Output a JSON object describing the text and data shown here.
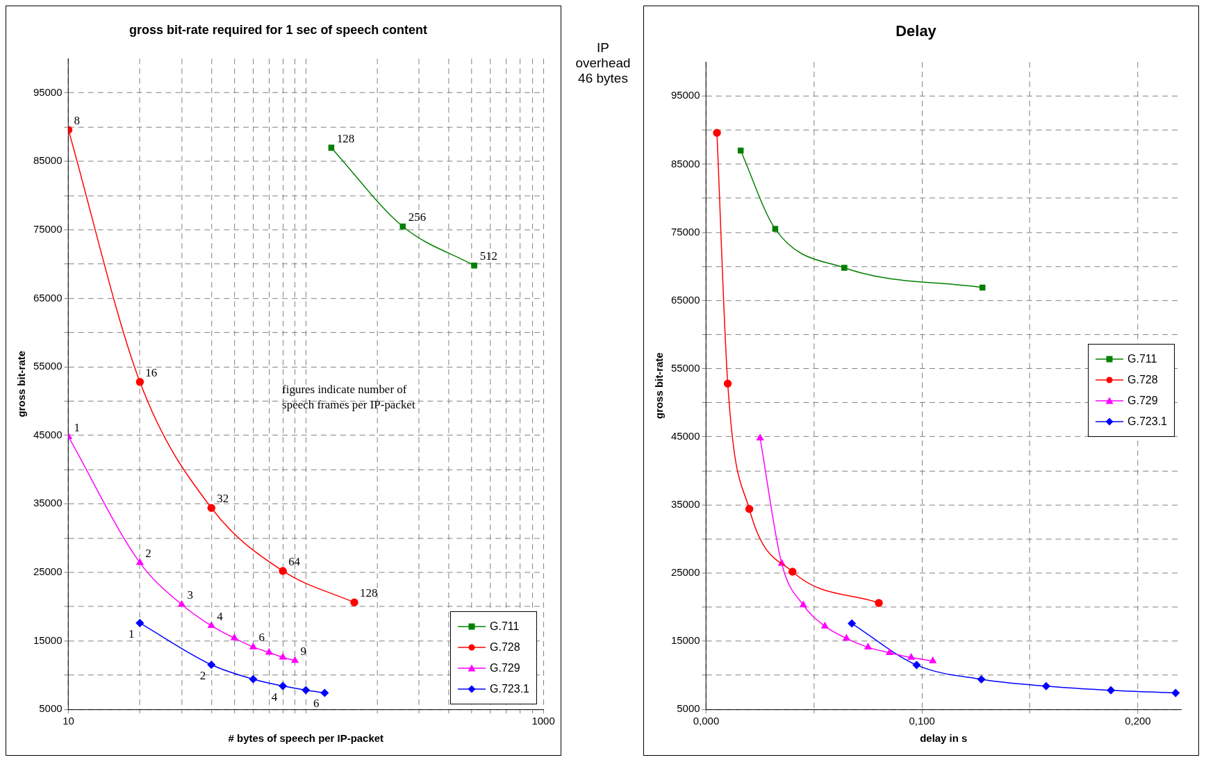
{
  "chart_data": [
    {
      "type": "line",
      "title": "gross bit-rate required for 1 sec of speech content",
      "xlabel": "# bytes of speech per IP-packet",
      "ylabel": "gross bit-rate",
      "log": "x",
      "xlim": [
        10,
        1000
      ],
      "xticks": [
        10,
        {
          "value": 20,
          "label": null
        },
        {
          "value": 30,
          "label": null
        },
        {
          "value": 40,
          "label": null
        },
        {
          "value": 50,
          "label": null
        },
        {
          "value": 60,
          "label": null
        },
        {
          "value": 70,
          "label": null
        },
        {
          "value": 80,
          "label": null
        },
        {
          "value": 90,
          "label": null
        },
        {
          "value": 100,
          "label": null
        },
        {
          "value": 200,
          "label": null
        },
        {
          "value": 300,
          "label": null
        },
        {
          "value": 400,
          "label": null
        },
        {
          "value": 500,
          "label": null
        },
        {
          "value": 600,
          "label": null
        },
        {
          "value": 700,
          "label": null
        },
        {
          "value": 800,
          "label": null
        },
        {
          "value": 900,
          "label": null
        },
        1000
      ],
      "ylim": [
        5000,
        100000
      ],
      "yticks": [
        5000,
        {
          "value": 10000,
          "label": null
        },
        15000,
        {
          "value": 20000,
          "label": null
        },
        25000,
        {
          "value": 30000,
          "label": null
        },
        35000,
        {
          "value": 40000,
          "label": null
        },
        45000,
        {
          "value": 50000,
          "label": null
        },
        55000,
        {
          "value": 60000,
          "label": null
        },
        65000,
        {
          "value": 70000,
          "label": null
        },
        75000,
        {
          "value": 80000,
          "label": null
        },
        85000,
        {
          "value": 90000,
          "label": null
        },
        95000
      ],
      "grid": true,
      "legend": "bottom right",
      "annotations": [
        "figures indicate number of speech frames per IP-packet",
        {
          "text": "128",
          "x": 128,
          "y": 87000
        },
        {
          "text": "256",
          "x": 256,
          "y": 75500
        },
        {
          "text": "512",
          "x": 512,
          "y": 69800
        },
        {
          "text": "8",
          "x": 10,
          "y": 89600
        },
        {
          "text": "16",
          "x": 20,
          "y": 52800
        },
        {
          "text": "32",
          "x": 40,
          "y": 34400
        },
        {
          "text": "64",
          "x": 80,
          "y": 25200
        },
        {
          "text": "128",
          "x": 160,
          "y": 20600
        },
        {
          "text": "1",
          "x": 10,
          "y": 44800
        },
        {
          "text": "2",
          "x": 20,
          "y": 26400
        },
        {
          "text": "3",
          "x": 30,
          "y": 20300
        },
        {
          "text": "4",
          "x": 40,
          "y": 17200
        },
        {
          "text": "6",
          "x": 60,
          "y": 14100
        },
        {
          "text": "9",
          "x": 90,
          "y": 12100
        },
        {
          "text": "1",
          "x": 20,
          "y": 17600
        },
        {
          "text": "2",
          "x": 40,
          "y": 11500
        },
        {
          "text": "4",
          "x": 80,
          "y": 8400
        },
        {
          "text": "6",
          "x": 120,
          "y": 7400
        }
      ],
      "series": [
        {
          "name": "G.711",
          "color": "#008000",
          "marker": "square",
          "x": [
            128,
            256,
            512
          ],
          "values": [
            87000,
            75500,
            69800
          ]
        },
        {
          "name": "G.728",
          "color": "#ff0000",
          "marker": "circle",
          "x": [
            10,
            20,
            40,
            80,
            160
          ],
          "values": [
            89600,
            52800,
            34400,
            25200,
            20600
          ]
        },
        {
          "name": "G.729",
          "color": "#ff00ff",
          "marker": "triangle",
          "x": [
            10,
            20,
            30,
            40,
            50,
            60,
            70,
            80,
            90
          ],
          "values": [
            44800,
            26400,
            20300,
            17200,
            15400,
            14100,
            13300,
            12600,
            12100
          ]
        },
        {
          "name": "G.723.1",
          "color": "#0000ff",
          "marker": "diamond",
          "x": [
            20,
            40,
            60,
            80,
            100,
            120
          ],
          "values": [
            17600,
            11500,
            9400,
            8400,
            7800,
            7400
          ]
        }
      ]
    },
    {
      "type": "other",
      "annotations": [
        "IP overhead 46 bytes"
      ]
    },
    {
      "type": "line",
      "title": "Delay",
      "xlabel": "delay in s",
      "ylabel": "gross bit-rate",
      "xlim": [
        0,
        0.22
      ],
      "xticks": [
        {
          "value": 0,
          "label": "0,000"
        },
        {
          "value": 0.05,
          "label": null
        },
        {
          "value": 0.1,
          "label": "0,100"
        },
        {
          "value": 0.15,
          "label": null
        },
        {
          "value": 0.2,
          "label": "0,200"
        }
      ],
      "ylim": [
        5000,
        100000
      ],
      "yticks": [
        5000,
        {
          "value": 10000,
          "label": null
        },
        15000,
        {
          "value": 20000,
          "label": null
        },
        25000,
        {
          "value": 30000,
          "label": null
        },
        35000,
        {
          "value": 40000,
          "label": null
        },
        45000,
        {
          "value": 50000,
          "label": null
        },
        55000,
        {
          "value": 60000,
          "label": null
        },
        65000,
        {
          "value": 70000,
          "label": null
        },
        75000,
        {
          "value": 80000,
          "label": null
        },
        85000,
        {
          "value": 90000,
          "label": null
        },
        95000
      ],
      "grid": true,
      "legend": "right",
      "series": [
        {
          "name": "G.711",
          "color": "#008000",
          "marker": "square",
          "x": [
            0.016,
            0.032,
            0.064,
            0.128
          ],
          "values": [
            87000,
            75500,
            69800,
            66900
          ]
        },
        {
          "name": "G.728",
          "color": "#ff0000",
          "marker": "circle",
          "x": [
            0.005,
            0.01,
            0.02,
            0.04,
            0.08
          ],
          "values": [
            89600,
            52800,
            34400,
            25200,
            20600
          ]
        },
        {
          "name": "G.729",
          "color": "#ff00ff",
          "marker": "triangle",
          "x": [
            0.025,
            0.035,
            0.045,
            0.055,
            0.065,
            0.075,
            0.085,
            0.095,
            0.105
          ],
          "values": [
            44800,
            26400,
            20300,
            17200,
            15400,
            14100,
            13300,
            12600,
            12100
          ]
        },
        {
          "name": "G.723.1",
          "color": "#0000ff",
          "marker": "diamond",
          "x": [
            0.0675,
            0.0975,
            0.1275,
            0.1575,
            0.1875,
            0.2175
          ],
          "values": [
            17600,
            11500,
            9400,
            8400,
            7800,
            7400
          ]
        }
      ]
    }
  ]
}
